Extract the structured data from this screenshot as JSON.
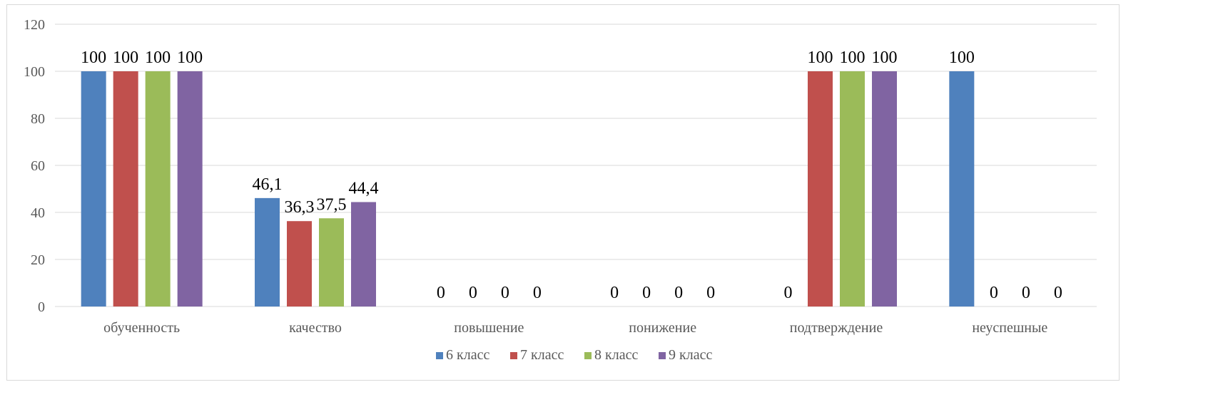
{
  "chart_data": {
    "type": "bar",
    "categories": [
      "обученность",
      "качество",
      "повышение",
      "понижение",
      "подтверждение",
      "неуспешные"
    ],
    "series": [
      {
        "name": "6 класс",
        "color": "#4F81BD",
        "values": [
          100,
          46.1,
          0,
          0,
          0,
          100
        ],
        "labels": [
          "100",
          "46,1",
          "0",
          "0",
          "0",
          "100"
        ]
      },
      {
        "name": "7 класс",
        "color": "#C0504D",
        "values": [
          100,
          36.3,
          0,
          0,
          100,
          0
        ],
        "labels": [
          "100",
          "36,3",
          "0",
          "0",
          "100",
          "0"
        ]
      },
      {
        "name": "8 класс",
        "color": "#9BBB59",
        "values": [
          100,
          37.5,
          0,
          0,
          100,
          0
        ],
        "labels": [
          "100",
          "37,5",
          "0",
          "0",
          "100",
          "0"
        ]
      },
      {
        "name": "9 класс",
        "color": "#8064A2",
        "values": [
          100,
          44.4,
          0,
          0,
          100,
          0
        ],
        "labels": [
          "100",
          "44,4",
          "0",
          "0",
          "100",
          "0"
        ]
      }
    ],
    "yticks": [
      "0",
      "20",
      "40",
      "60",
      "80",
      "100",
      "120"
    ],
    "ylim": [
      0,
      120
    ],
    "grid": true,
    "legend": "bottom",
    "title": "",
    "xlabel": "",
    "ylabel": ""
  }
}
